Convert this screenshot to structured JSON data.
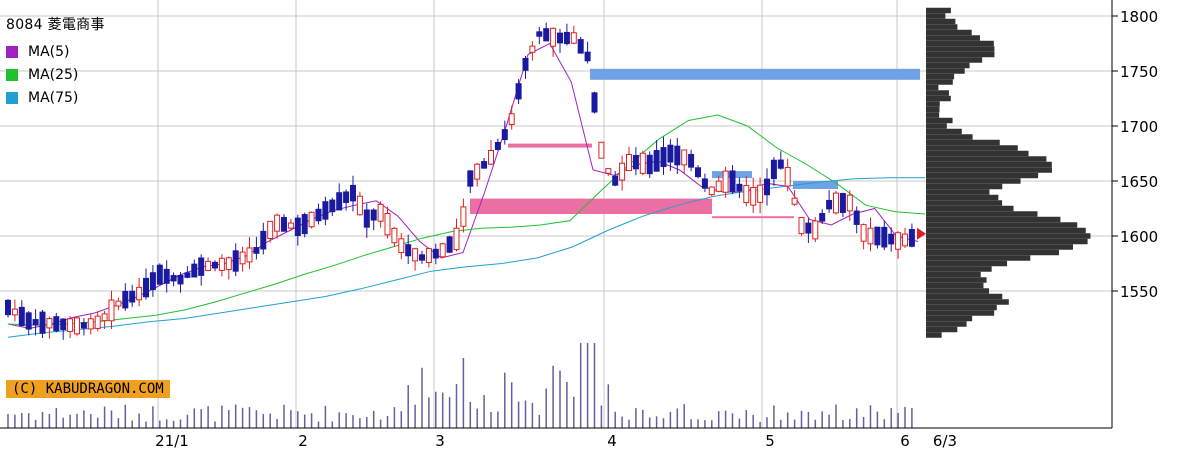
{
  "header": {
    "title": "8084 菱電商事",
    "legend": [
      {
        "label": "MA(5)",
        "color": "#a020c0"
      },
      {
        "label": "MA(25)",
        "color": "#20c030"
      },
      {
        "label": "MA(75)",
        "color": "#20a0d0"
      }
    ]
  },
  "copyright": "(C) KABUDRAGON.COM",
  "colors": {
    "up_candle": "#e02020",
    "down_candle": "#1a1aa0",
    "ma5": "#a020c0",
    "ma25": "#20c030",
    "ma75": "#20a0d0",
    "grid": "#c8c8c8",
    "profile": "#333333",
    "resistance_band": "#6fa3e6",
    "support_band": "#ec6fa3",
    "volume": "#6060a0",
    "current_marker": "#e02020"
  },
  "chart_data": {
    "type": "candlestick",
    "title": "8084 菱電商事",
    "ylim": [
      1490,
      1810
    ],
    "y_ticks": [
      "1550",
      "1600",
      "1650",
      "1700",
      "1750",
      "1800"
    ],
    "x_tick_labels": [
      "21/1",
      "2",
      "3",
      "4",
      "5",
      "6",
      "6/3"
    ],
    "grid": true,
    "series": [
      {
        "name": "MA(5)",
        "values": [
          1520,
          1516,
          1520,
          1526,
          1530,
          1537,
          1545,
          1555,
          1565,
          1572,
          1575,
          1582,
          1595,
          1605,
          1615,
          1623,
          1628,
          1632,
          1618,
          1595,
          1580,
          1585,
          1640,
          1700,
          1765,
          1775,
          1740,
          1660,
          1655,
          1665,
          1668,
          1660,
          1645,
          1640,
          1640,
          1648,
          1645,
          1615,
          1610,
          1620,
          1625,
          1600,
          1595
        ]
      },
      {
        "name": "MA(25)",
        "values": [
          1520,
          1519,
          1520,
          1522,
          1525,
          1528,
          1533,
          1540,
          1548,
          1556,
          1565,
          1573,
          1582,
          1590,
          1598,
          1604,
          1607,
          1608,
          1610,
          1614,
          1640,
          1665,
          1688,
          1705,
          1710,
          1700,
          1680,
          1665,
          1648,
          1628,
          1622,
          1620
        ]
      },
      {
        "name": "MA(75)",
        "values": [
          1508,
          1512,
          1515,
          1518,
          1522,
          1525,
          1530,
          1535,
          1540,
          1545,
          1552,
          1560,
          1568,
          1572,
          1575,
          1580,
          1590,
          1605,
          1618,
          1628,
          1636,
          1641,
          1645,
          1649,
          1652,
          1653,
          1653
        ]
      }
    ],
    "volume_profile_peak_price": 1600,
    "current_price": 1602,
    "resistance_levels": [
      1747,
      1682,
      1626,
      1617,
      1645
    ],
    "date_range": [
      "2020-12",
      "2021-06-03"
    ]
  }
}
